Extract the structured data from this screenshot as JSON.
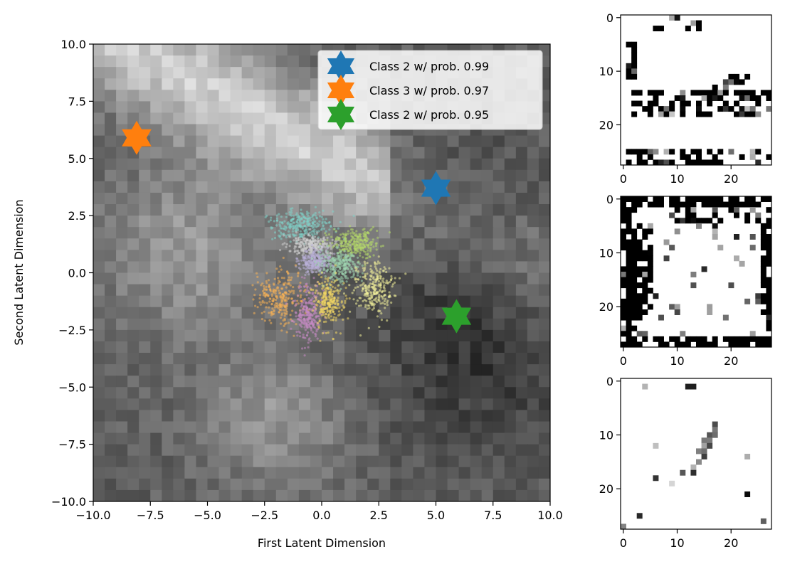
{
  "chart_data": [
    {
      "type": "scatter",
      "xlabel": "First Latent Dimension",
      "ylabel": "Second Latent Dimension",
      "xlim": [
        -10,
        10
      ],
      "ylim": [
        -10,
        10
      ],
      "xticks": [
        -10,
        -7.5,
        -5,
        -2.5,
        0,
        2.5,
        5,
        7.5,
        10
      ],
      "yticks": [
        -10,
        -7.5,
        -5,
        -2.5,
        0,
        2.5,
        5,
        7.5,
        10
      ],
      "xtick_labels": [
        "−10.0",
        "−7.5",
        "−5.0",
        "−2.5",
        "0.0",
        "2.5",
        "5.0",
        "7.5",
        "10.0"
      ],
      "ytick_labels": [
        "−10.0",
        "−7.5",
        "−5.0",
        "−2.5",
        "0.0",
        "2.5",
        "5.0",
        "7.5",
        "10.0"
      ],
      "background": "grayscale heatmap of decoded images over latent grid",
      "markers": [
        {
          "label": "Class 2 w/ prob. 0.99",
          "x": 5.0,
          "y": 3.7,
          "color": "#1f77b4",
          "shape": "star"
        },
        {
          "label": "Class 3 w/ prob. 0.97",
          "x": -8.1,
          "y": 5.9,
          "color": "#ff7f0e",
          "shape": "star"
        },
        {
          "label": "Class 2 w/ prob. 0.95",
          "x": 5.9,
          "y": -1.9,
          "color": "#2ca02c",
          "shape": "star"
        }
      ],
      "legend_position": "top-right",
      "clusters": [
        {
          "center": [
            -0.9,
            2.1
          ],
          "color": "#7fd1c8"
        },
        {
          "center": [
            -0.4,
            1.2
          ],
          "color": "#d0d0d0"
        },
        {
          "center": [
            1.4,
            1.3
          ],
          "color": "#b5d96a"
        },
        {
          "center": [
            -0.3,
            0.5
          ],
          "color": "#b9b1d8"
        },
        {
          "center": [
            0.8,
            0.3
          ],
          "color": "#9fd5b0"
        },
        {
          "center": [
            2.3,
            -0.7
          ],
          "color": "#f3f19a"
        },
        {
          "center": [
            -1.9,
            -1.1
          ],
          "color": "#f6b155"
        },
        {
          "center": [
            -0.6,
            -1.8
          ],
          "color": "#c68ac4"
        },
        {
          "center": [
            0.3,
            -1.3
          ],
          "color": "#f2d764"
        }
      ]
    },
    {
      "type": "heatmap",
      "panel": "top",
      "xticks": [
        0,
        10,
        20
      ],
      "yticks": [
        0,
        10,
        20
      ],
      "xtick_labels": [
        "0",
        "10",
        "20"
      ],
      "ytick_labels": [
        "0",
        "10",
        "20"
      ]
    },
    {
      "type": "heatmap",
      "panel": "middle",
      "xticks": [
        0,
        10,
        20
      ],
      "yticks": [
        0,
        10,
        20
      ],
      "xtick_labels": [
        "0",
        "10",
        "20"
      ],
      "ytick_labels": [
        "0",
        "10",
        "20"
      ]
    },
    {
      "type": "heatmap",
      "panel": "bottom",
      "xticks": [
        0,
        10,
        20
      ],
      "yticks": [
        0,
        10,
        20
      ],
      "xtick_labels": [
        "0",
        "10",
        "20"
      ],
      "ytick_labels": [
        "0",
        "10",
        "20"
      ]
    }
  ]
}
